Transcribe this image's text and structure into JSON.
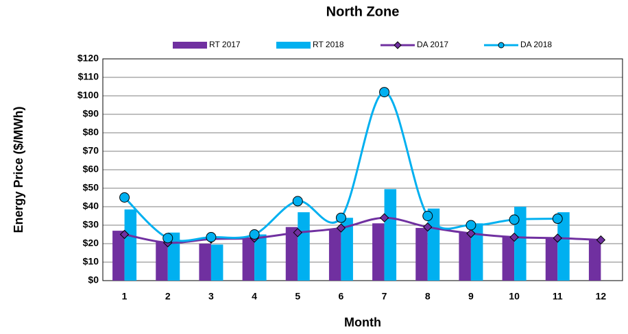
{
  "chart_data": {
    "type": "bar-line",
    "title": "North Zone",
    "x_label": "Month",
    "y_label": "Energy Price ($/MWh)",
    "categories": [
      "1",
      "2",
      "3",
      "4",
      "5",
      "6",
      "7",
      "8",
      "9",
      "10",
      "11",
      "12"
    ],
    "series": [
      {
        "name": "RT 2017",
        "type": "bar",
        "color": "#7030a0",
        "values": [
          27,
          21,
          20,
          23,
          29,
          28,
          31,
          28.5,
          26,
          24,
          23,
          22
        ]
      },
      {
        "name": "RT 2018",
        "type": "bar",
        "color": "#00b0f0",
        "values": [
          38.5,
          26,
          19.5,
          25,
          37,
          34,
          49.5,
          39,
          31,
          40,
          37,
          null
        ]
      },
      {
        "name": "DA 2017",
        "type": "line",
        "marker": "diamond",
        "color": "#7030a0",
        "values": [
          25,
          20.5,
          22.5,
          23,
          26,
          28.5,
          34,
          29,
          25.5,
          23.5,
          23,
          22
        ]
      },
      {
        "name": "DA 2018",
        "type": "line",
        "marker": "circle",
        "color": "#00b0f0",
        "values": [
          45,
          23,
          23.5,
          25,
          43,
          34,
          102,
          35,
          30,
          33,
          33.5,
          null
        ]
      }
    ],
    "ylim": [
      0,
      120
    ],
    "yticks": [
      {
        "value": 0,
        "label": "$0"
      },
      {
        "value": 10,
        "label": "$10"
      },
      {
        "value": 20,
        "label": "$20"
      },
      {
        "value": 30,
        "label": "$30"
      },
      {
        "value": 40,
        "label": "$40"
      },
      {
        "value": 50,
        "label": "$50"
      },
      {
        "value": 60,
        "label": "$60"
      },
      {
        "value": 70,
        "label": "$70"
      },
      {
        "value": 80,
        "label": "$80"
      },
      {
        "value": 90,
        "label": "$90"
      },
      {
        "value": 100,
        "label": "$100"
      },
      {
        "value": 110,
        "label": "$110"
      },
      {
        "value": 120,
        "label": "$120"
      }
    ],
    "grid": true,
    "legend": "top"
  }
}
